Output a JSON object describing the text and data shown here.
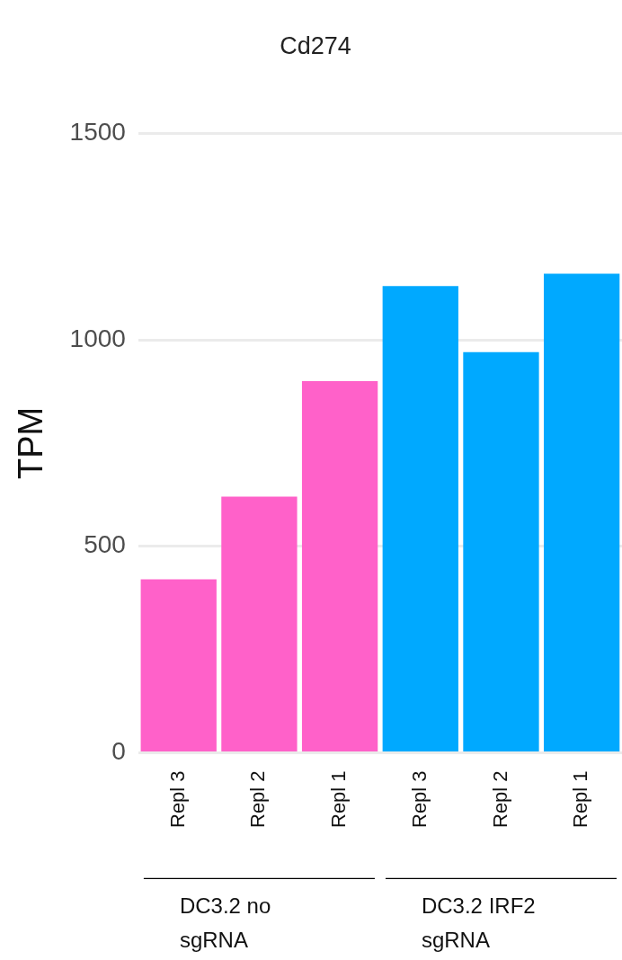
{
  "chart_data": {
    "type": "bar",
    "title": "Cd274",
    "ylabel": "TPM",
    "categories": [
      "Repl 3",
      "Repl 2",
      "Repl 1",
      "Repl 3",
      "Repl 2",
      "Repl 1"
    ],
    "values": [
      420,
      620,
      900,
      1130,
      970,
      1160
    ],
    "colors": [
      "#ff61c9",
      "#ff61c9",
      "#ff61c9",
      "#00a9ff",
      "#00a9ff",
      "#00a9ff"
    ],
    "ylim": [
      0,
      1500
    ],
    "yticks": [
      0,
      500,
      1000,
      1500
    ],
    "grid": "y",
    "legend": false,
    "annotations": [
      "DC3.2 no sgRNA",
      "DC3.2 IRF2 sgRNA"
    ]
  }
}
